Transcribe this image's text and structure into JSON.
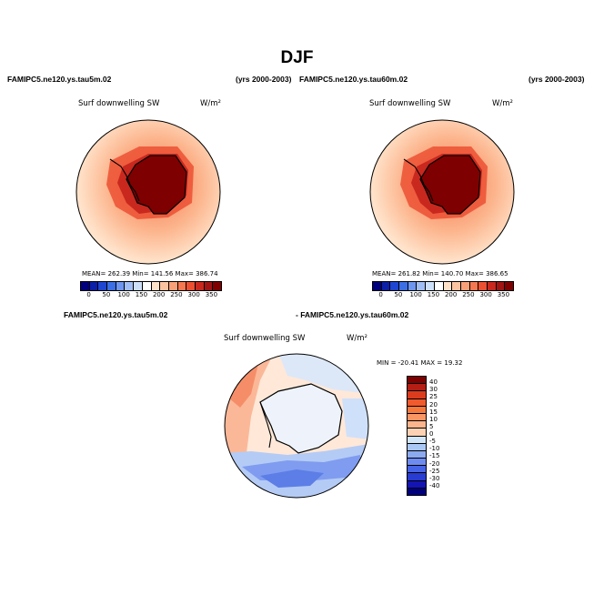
{
  "title": "DJF",
  "panels": {
    "left": {
      "case": "FAMIPC5.ne120.ys.tau5m.02",
      "years": "(yrs 2000-2003)",
      "field": "Surf downwelling SW",
      "units": "W/m²",
      "stats": "MEAN= 262.39   Min= 141.56   Max= 386.74"
    },
    "right": {
      "case": "FAMIPC5.ne120.ys.tau60m.02",
      "years": "(yrs 2000-2003)",
      "field": "Surf downwelling SW",
      "units": "W/m²",
      "stats": "MEAN= 261.82   Min= 140.70   Max= 386.65"
    },
    "diff": {
      "case_a": "FAMIPC5.ne120.ys.tau5m.02",
      "case_b": "- FAMIPC5.ne120.ys.tau60m.02",
      "field": "Surf downwelling SW",
      "units": "W/m²",
      "minmax": "MIN = -20.41  MAX =  19.32"
    }
  },
  "colorbar_abs": {
    "labels": [
      "0",
      "50",
      "100",
      "150",
      "200",
      "250",
      "300",
      "350"
    ],
    "colors": [
      "#00007f",
      "#0c1fa8",
      "#1e46d2",
      "#3c6ee6",
      "#6e96f0",
      "#a0bef5",
      "#cde0fa",
      "#ffffff",
      "#ffe1c8",
      "#fcc3a0",
      "#faa078",
      "#f57850",
      "#eb5032",
      "#c8281e",
      "#a01414",
      "#7f0000"
    ]
  },
  "colorbar_diff": {
    "labels": [
      "40",
      "30",
      "25",
      "20",
      "15",
      "10",
      "5",
      "0",
      "-5",
      "-10",
      "-15",
      "-20",
      "-25",
      "-30",
      "-40"
    ],
    "colors": [
      "#7f0000",
      "#b41e14",
      "#dc3c1e",
      "#f05a2d",
      "#f5783c",
      "#fa9664",
      "#fcb48c",
      "#fdd2b4",
      "#d2e6fa",
      "#aac8f5",
      "#8caaf0",
      "#6e8cf0",
      "#4664e6",
      "#283cd2",
      "#1414b4",
      "#00007f"
    ]
  }
}
